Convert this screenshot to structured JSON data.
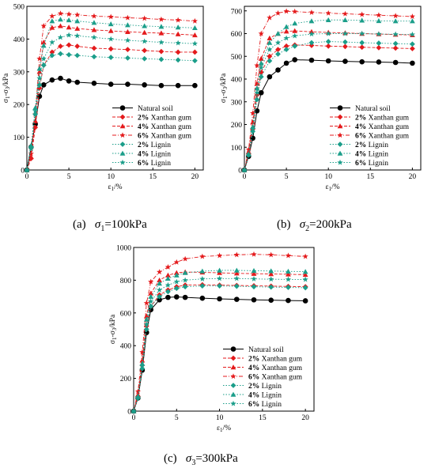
{
  "figure": {
    "captions": [
      {
        "prefix": "(a)",
        "sigma": "σ",
        "sub": "1",
        "rest": "=100kPa"
      },
      {
        "prefix": "(b)",
        "sigma": "σ",
        "sub": "2",
        "rest": "=200kPa"
      },
      {
        "prefix": "(c)",
        "sigma": "σ",
        "sub": "3",
        "rest": "=300kPa"
      }
    ]
  },
  "legend_labels": [
    "Natural soil",
    "2% Xanthan gum",
    "4% Xanthan gum",
    "6% Xanthan gum",
    "2% Lignin",
    "4% Lignin",
    "6% Lignin"
  ],
  "chart_data": [
    {
      "type": "line",
      "title": "",
      "xlabel": "ε1/%",
      "ylabel": "σ1-σ3/kPa",
      "xlim": [
        0,
        21
      ],
      "ylim": [
        0,
        500
      ],
      "xticks": [
        0,
        5,
        10,
        15,
        20
      ],
      "yticks": [
        0,
        100,
        200,
        300,
        400,
        500
      ],
      "grid": false,
      "legend": "bottom-right",
      "series": [
        {
          "name": "Natural soil",
          "color": "#000000",
          "line": "solid",
          "marker": "circle",
          "x": [
            0,
            0.5,
            1,
            1.5,
            2,
            3,
            4,
            5,
            6,
            8,
            10,
            12,
            14,
            16,
            18,
            20
          ],
          "y": [
            0,
            70,
            140,
            225,
            260,
            275,
            280,
            272,
            268,
            265,
            262,
            262,
            260,
            258,
            258,
            258
          ]
        },
        {
          "name": "2% Xanthan gum",
          "color": "#e41a1c",
          "line": "dash",
          "marker": "diamond",
          "x": [
            0,
            0.5,
            1,
            1.5,
            2,
            3,
            4,
            5,
            6,
            8,
            10,
            12,
            14,
            16,
            18,
            20
          ],
          "y": [
            0,
            35,
            130,
            250,
            320,
            360,
            378,
            382,
            378,
            372,
            370,
            368,
            365,
            362,
            360,
            360
          ]
        },
        {
          "name": "4% Xanthan gum",
          "color": "#e41a1c",
          "line": "dash",
          "marker": "triangle",
          "x": [
            0,
            0.5,
            1,
            1.5,
            2,
            3,
            4,
            5,
            6,
            8,
            10,
            12,
            14,
            16,
            18,
            20
          ],
          "y": [
            0,
            40,
            150,
            300,
            390,
            435,
            440,
            436,
            432,
            428,
            425,
            422,
            420,
            418,
            415,
            412
          ]
        },
        {
          "name": "6% Xanthan gum",
          "color": "#e41a1c",
          "line": "dashdot",
          "marker": "star",
          "x": [
            0,
            0.5,
            1,
            1.5,
            2,
            3,
            4,
            5,
            6,
            8,
            10,
            12,
            14,
            16,
            18,
            20
          ],
          "y": [
            0,
            50,
            170,
            340,
            440,
            470,
            478,
            476,
            474,
            470,
            468,
            465,
            463,
            460,
            458,
            455
          ]
        },
        {
          "name": "2% Lignin",
          "color": "#1b9e8a",
          "line": "dot",
          "marker": "diamond",
          "x": [
            0,
            0.5,
            1,
            1.5,
            2,
            3,
            4,
            5,
            6,
            8,
            10,
            12,
            14,
            16,
            18,
            20
          ],
          "y": [
            0,
            70,
            170,
            260,
            320,
            350,
            355,
            352,
            350,
            346,
            344,
            342,
            340,
            338,
            336,
            334
          ]
        },
        {
          "name": "4% Lignin",
          "color": "#1b9e8a",
          "line": "dot",
          "marker": "triangle",
          "x": [
            0,
            0.5,
            1,
            1.5,
            2,
            3,
            4,
            5,
            6,
            8,
            10,
            12,
            14,
            16,
            18,
            20
          ],
          "y": [
            0,
            75,
            190,
            310,
            380,
            455,
            460,
            458,
            455,
            450,
            446,
            443,
            440,
            438,
            436,
            434
          ]
        },
        {
          "name": "6% Lignin",
          "color": "#1b9e8a",
          "line": "dot",
          "marker": "star",
          "x": [
            0,
            0.5,
            1,
            1.5,
            2,
            3,
            4,
            5,
            6,
            8,
            10,
            12,
            14,
            16,
            18,
            20
          ],
          "y": [
            0,
            65,
            180,
            280,
            340,
            390,
            405,
            412,
            410,
            405,
            400,
            396,
            393,
            390,
            388,
            386
          ]
        }
      ]
    },
    {
      "type": "line",
      "title": "",
      "xlabel": "ε1/%",
      "ylabel": "σ1-σ3/kPa",
      "xlim": [
        0,
        21
      ],
      "ylim": [
        0,
        720
      ],
      "xticks": [
        0,
        5,
        10,
        15,
        20
      ],
      "yticks": [
        0,
        100,
        200,
        300,
        400,
        500,
        600,
        700
      ],
      "grid": false,
      "legend": "bottom-right",
      "series": [
        {
          "name": "Natural soil",
          "color": "#000000",
          "line": "solid",
          "marker": "circle",
          "x": [
            0,
            0.5,
            1,
            1.5,
            2,
            3,
            4,
            5,
            6,
            8,
            10,
            12,
            14,
            16,
            18,
            20
          ],
          "y": [
            0,
            60,
            140,
            260,
            340,
            410,
            440,
            470,
            485,
            483,
            480,
            478,
            476,
            475,
            473,
            470
          ]
        },
        {
          "name": "2% Xanthan gum",
          "color": "#e41a1c",
          "line": "dash",
          "marker": "diamond",
          "x": [
            0,
            0.5,
            1,
            1.5,
            2,
            3,
            4,
            5,
            6,
            8,
            10,
            12,
            14,
            16,
            18,
            20
          ],
          "y": [
            0,
            70,
            180,
            330,
            430,
            500,
            530,
            545,
            550,
            548,
            545,
            543,
            540,
            538,
            536,
            534
          ]
        },
        {
          "name": "4% Xanthan gum",
          "color": "#e41a1c",
          "line": "dash",
          "marker": "triangle",
          "x": [
            0,
            0.5,
            1,
            1.5,
            2,
            3,
            4,
            5,
            6,
            8,
            10,
            12,
            14,
            16,
            18,
            20
          ],
          "y": [
            0,
            80,
            210,
            380,
            490,
            580,
            600,
            610,
            612,
            608,
            605,
            603,
            600,
            598,
            596,
            594
          ]
        },
        {
          "name": "6% Xanthan gum",
          "color": "#e41a1c",
          "line": "dashdot",
          "marker": "star",
          "x": [
            0,
            0.5,
            1,
            1.5,
            2,
            3,
            4,
            5,
            6,
            8,
            10,
            12,
            14,
            16,
            18,
            20
          ],
          "y": [
            0,
            90,
            250,
            460,
            600,
            670,
            690,
            698,
            697,
            693,
            690,
            687,
            684,
            681,
            678,
            675
          ]
        },
        {
          "name": "2% Lignin",
          "color": "#1b9e8a",
          "line": "dot",
          "marker": "diamond",
          "x": [
            0,
            0.5,
            1,
            1.5,
            2,
            3,
            4,
            5,
            6,
            8,
            10,
            12,
            14,
            16,
            18,
            20
          ],
          "y": [
            0,
            65,
            170,
            310,
            410,
            480,
            510,
            530,
            545,
            560,
            565,
            563,
            560,
            558,
            556,
            554
          ]
        },
        {
          "name": "4% Lignin",
          "color": "#1b9e8a",
          "line": "dot",
          "marker": "triangle",
          "x": [
            0,
            0.5,
            1,
            1.5,
            2,
            3,
            4,
            5,
            6,
            8,
            10,
            12,
            14,
            16,
            18,
            20
          ],
          "y": [
            0,
            70,
            190,
            360,
            470,
            560,
            600,
            630,
            645,
            655,
            660,
            660,
            658,
            656,
            655,
            655
          ]
        },
        {
          "name": "6% Lignin",
          "color": "#1b9e8a",
          "line": "dot",
          "marker": "star",
          "x": [
            0,
            0.5,
            1,
            1.5,
            2,
            3,
            4,
            5,
            6,
            8,
            10,
            12,
            14,
            16,
            18,
            20
          ],
          "y": [
            0,
            70,
            180,
            340,
            450,
            530,
            560,
            580,
            590,
            598,
            600,
            600,
            600,
            598,
            597,
            596
          ]
        }
      ]
    },
    {
      "type": "line",
      "title": "",
      "xlabel": "ε1/%",
      "ylabel": "σ1-σ3/kPa",
      "xlim": [
        0,
        21
      ],
      "ylim": [
        0,
        1000
      ],
      "xticks": [
        0,
        5,
        10,
        15,
        20
      ],
      "yticks": [
        0,
        200,
        400,
        600,
        800,
        1000
      ],
      "grid": false,
      "legend": "bottom-right",
      "series": [
        {
          "name": "Natural soil",
          "color": "#000000",
          "line": "solid",
          "marker": "circle",
          "x": [
            0,
            0.5,
            1,
            1.5,
            2,
            3,
            4,
            5,
            6,
            8,
            10,
            12,
            14,
            16,
            18,
            20
          ],
          "y": [
            0,
            80,
            250,
            480,
            620,
            680,
            695,
            698,
            695,
            690,
            686,
            683,
            680,
            678,
            676,
            674
          ]
        },
        {
          "name": "2% Xanthan gum",
          "color": "#e41a1c",
          "line": "dash",
          "marker": "diamond",
          "x": [
            0,
            0.5,
            1,
            1.5,
            2,
            3,
            4,
            5,
            6,
            8,
            10,
            12,
            14,
            16,
            18,
            20
          ],
          "y": [
            0,
            90,
            280,
            520,
            640,
            710,
            740,
            760,
            770,
            772,
            770,
            768,
            766,
            764,
            762,
            760
          ]
        },
        {
          "name": "4% Xanthan gum",
          "color": "#e41a1c",
          "line": "dash",
          "marker": "triangle",
          "x": [
            0,
            0.5,
            1,
            1.5,
            2,
            3,
            4,
            5,
            6,
            8,
            10,
            12,
            14,
            16,
            18,
            20
          ],
          "y": [
            0,
            100,
            310,
            580,
            720,
            800,
            830,
            845,
            850,
            848,
            845,
            842,
            840,
            838,
            836,
            834
          ]
        },
        {
          "name": "6% Xanthan gum",
          "color": "#e41a1c",
          "line": "dashdot",
          "marker": "star",
          "x": [
            0,
            0.5,
            1,
            1.5,
            2,
            3,
            4,
            5,
            6,
            8,
            10,
            12,
            14,
            16,
            18,
            20
          ],
          "y": [
            0,
            120,
            360,
            660,
            790,
            850,
            880,
            910,
            930,
            945,
            950,
            955,
            958,
            955,
            950,
            945
          ]
        },
        {
          "name": "2% Lignin",
          "color": "#1b9e8a",
          "line": "dot",
          "marker": "diamond",
          "x": [
            0,
            0.5,
            1,
            1.5,
            2,
            3,
            4,
            5,
            6,
            8,
            10,
            12,
            14,
            16,
            18,
            20
          ],
          "y": [
            0,
            80,
            260,
            500,
            640,
            700,
            730,
            750,
            760,
            765,
            765,
            763,
            760,
            758,
            756,
            754
          ]
        },
        {
          "name": "4% Lignin",
          "color": "#1b9e8a",
          "line": "dot",
          "marker": "triangle",
          "x": [
            0,
            0.5,
            1,
            1.5,
            2,
            3,
            4,
            5,
            6,
            8,
            10,
            12,
            14,
            16,
            18,
            20
          ],
          "y": [
            0,
            90,
            290,
            560,
            700,
            780,
            810,
            830,
            845,
            855,
            860,
            860,
            858,
            856,
            854,
            852
          ]
        },
        {
          "name": "6% Lignin",
          "color": "#1b9e8a",
          "line": "dot",
          "marker": "star",
          "x": [
            0,
            0.5,
            1,
            1.5,
            2,
            3,
            4,
            5,
            6,
            8,
            10,
            12,
            14,
            16,
            18,
            20
          ],
          "y": [
            0,
            85,
            275,
            530,
            670,
            740,
            770,
            790,
            800,
            808,
            810,
            810,
            808,
            806,
            805,
            804
          ]
        }
      ]
    }
  ]
}
